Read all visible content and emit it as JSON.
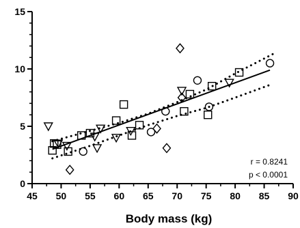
{
  "chart_data": {
    "type": "scatter",
    "title": "",
    "xlabel": "Body mass (kg)",
    "ylabel": "",
    "xlim": [
      45,
      90
    ],
    "ylim": [
      0,
      15
    ],
    "x_ticks": [
      45,
      50,
      55,
      60,
      65,
      70,
      75,
      80,
      85,
      90
    ],
    "y_ticks": [
      0,
      5,
      10,
      15
    ],
    "grid": false,
    "legend": "none",
    "series": [
      {
        "marker": "square",
        "points": [
          [
            48.5,
            2.9
          ],
          [
            48.8,
            3.5
          ],
          [
            49.3,
            3.4
          ],
          [
            51.2,
            2.8
          ],
          [
            53.5,
            4.2
          ],
          [
            55.0,
            4.4
          ],
          [
            59.5,
            5.5
          ],
          [
            60.8,
            6.9
          ],
          [
            62.2,
            4.2
          ],
          [
            63.5,
            5.1
          ],
          [
            71.2,
            6.3
          ],
          [
            72.2,
            7.8
          ],
          [
            75.3,
            6.0
          ],
          [
            76.0,
            8.5
          ],
          [
            80.7,
            9.7
          ]
        ]
      },
      {
        "marker": "circle",
        "points": [
          [
            53.8,
            2.8
          ],
          [
            65.5,
            4.5
          ],
          [
            68.0,
            6.3
          ],
          [
            73.5,
            9.0
          ],
          [
            75.5,
            6.7
          ],
          [
            86.0,
            10.5
          ]
        ]
      },
      {
        "marker": "triangle-down",
        "points": [
          [
            47.8,
            5.0
          ],
          [
            49.5,
            3.5
          ],
          [
            51.0,
            3.3
          ],
          [
            55.8,
            4.1
          ],
          [
            56.2,
            3.1
          ],
          [
            56.8,
            4.8
          ],
          [
            59.5,
            4.0
          ],
          [
            62.0,
            4.6
          ],
          [
            70.8,
            8.1
          ],
          [
            79.0,
            8.8
          ]
        ]
      },
      {
        "marker": "diamond",
        "points": [
          [
            51.5,
            1.2
          ],
          [
            66.5,
            4.8
          ],
          [
            68.2,
            3.1
          ],
          [
            70.5,
            11.8
          ],
          [
            70.8,
            7.5
          ]
        ]
      }
    ],
    "regression": {
      "x_start": 48.5,
      "x_end": 86.0,
      "y_start": 3.0,
      "y_end": 9.9
    },
    "confidence_band": {
      "upper": [
        [
          48.5,
          3.7
        ],
        [
          55,
          4.6
        ],
        [
          60,
          5.3
        ],
        [
          65,
          6.1
        ],
        [
          70,
          7.1
        ],
        [
          75,
          8.2
        ],
        [
          80,
          9.6
        ],
        [
          86.5,
          11.3
        ]
      ],
      "lower": [
        [
          48.5,
          2.2
        ],
        [
          55,
          3.3
        ],
        [
          60,
          4.2
        ],
        [
          65,
          5.1
        ],
        [
          70,
          5.9
        ],
        [
          75,
          6.6
        ],
        [
          80,
          7.5
        ],
        [
          86.5,
          8.7
        ]
      ]
    },
    "annotations": {
      "r": "r = 0.8241",
      "p": "p < 0.0001"
    }
  }
}
